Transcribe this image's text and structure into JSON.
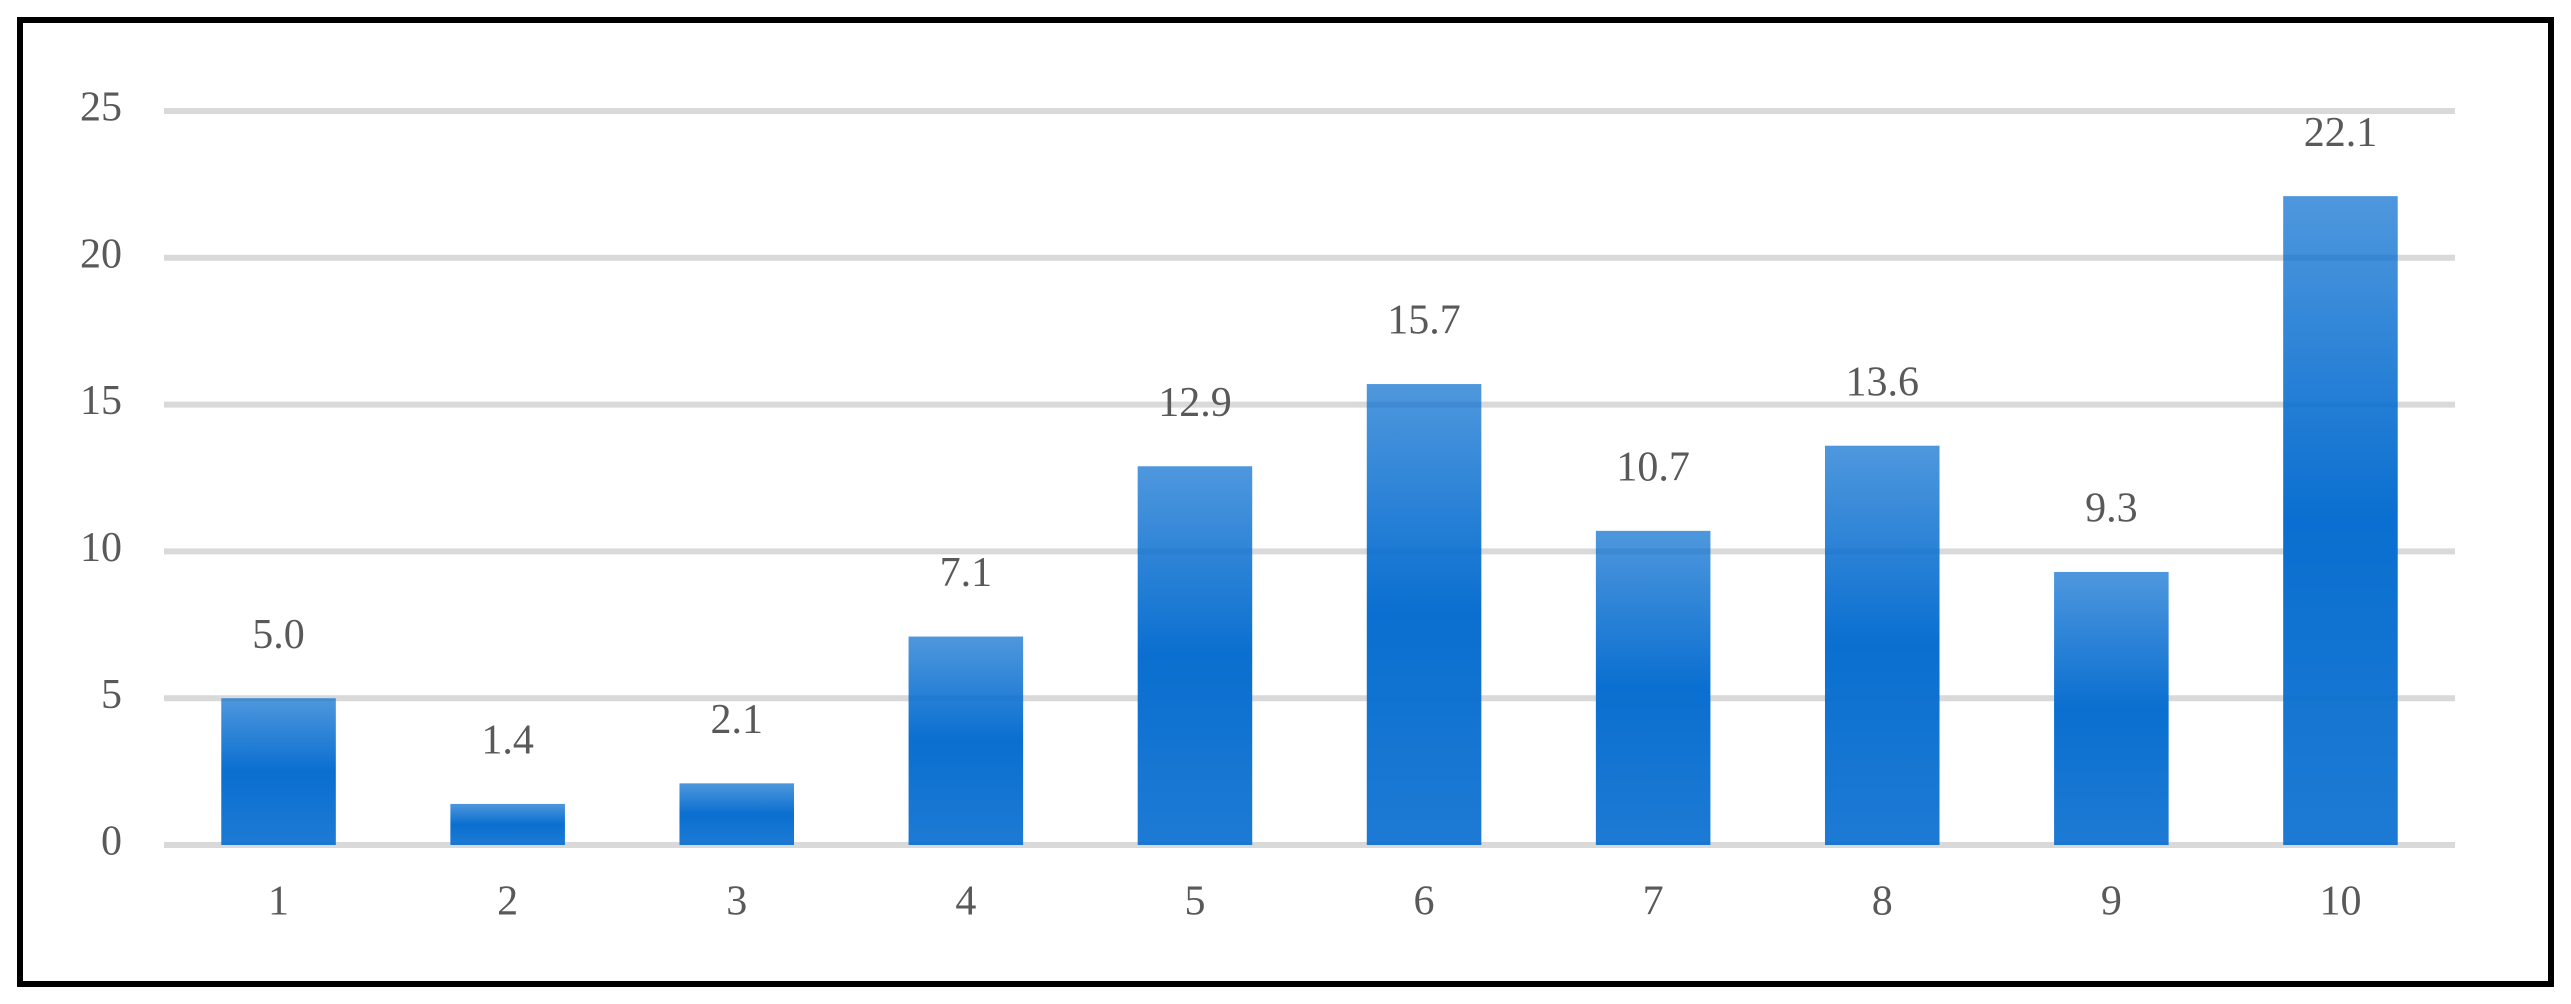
{
  "chart_data": {
    "type": "bar",
    "categories": [
      "1",
      "2",
      "3",
      "4",
      "5",
      "6",
      "7",
      "8",
      "9",
      "10"
    ],
    "values": [
      5.0,
      1.4,
      2.1,
      7.1,
      12.9,
      15.7,
      10.7,
      13.6,
      9.3,
      22.1
    ],
    "value_labels": [
      "5.0",
      "1.4",
      "2.1",
      "7.1",
      "12.9",
      "15.7",
      "10.7",
      "13.6",
      "9.3",
      "22.1"
    ],
    "color": "#0a6fd0",
    "ylim": [
      0,
      25
    ],
    "yticks": [
      0,
      5,
      10,
      15,
      20,
      25
    ],
    "grid": true
  }
}
